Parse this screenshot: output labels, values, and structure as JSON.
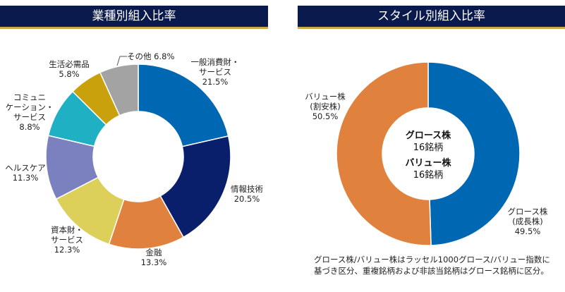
{
  "chart_data": [
    {
      "type": "pie",
      "title": "業種別組入比率",
      "donut": true,
      "slices": [
        {
          "label": "一般消費財・サービス",
          "label_lines": [
            "一般消費財・",
            "サービス"
          ],
          "value": 21.5,
          "value_text": "21.5%",
          "color": "#0068b3"
        },
        {
          "label": "情報技術",
          "label_lines": [
            "情報技術"
          ],
          "value": 20.5,
          "value_text": "20.5%",
          "color": "#0a1f6b"
        },
        {
          "label": "金融",
          "label_lines": [
            "金融"
          ],
          "value": 13.3,
          "value_text": "13.3%",
          "color": "#e0823d"
        },
        {
          "label": "資本財・サービス",
          "label_lines": [
            "資本財・",
            "サービス"
          ],
          "value": 12.3,
          "value_text": "12.3%",
          "color": "#dccf5a"
        },
        {
          "label": "ヘルスケア",
          "label_lines": [
            "ヘルスケア"
          ],
          "value": 11.3,
          "value_text": "11.3%",
          "color": "#7b80be"
        },
        {
          "label": "コミュニケーション・サービス",
          "label_lines": [
            "コミュニ",
            "ケーション・",
            "サービス"
          ],
          "value": 8.8,
          "value_text": "8.8%",
          "color": "#1fb0c4"
        },
        {
          "label": "生活必需品",
          "label_lines": [
            "生活必需品"
          ],
          "value": 5.8,
          "value_text": "5.8%",
          "color": "#c9a10c"
        },
        {
          "label": "その他",
          "label_lines": [],
          "value": 6.8,
          "value_text": "その他 6.8%",
          "color": "#a3a3a3"
        }
      ]
    },
    {
      "type": "pie",
      "title": "スタイル別組入比率",
      "donut": true,
      "slices": [
        {
          "label": "グロース株(成長株)",
          "label_lines": [
            "グロース株",
            "(成長株)"
          ],
          "value": 49.5,
          "value_text": "49.5%",
          "color": "#0068b3"
        },
        {
          "label": "バリュー株(割安株)",
          "label_lines": [
            "バリュー株",
            "(割安株)"
          ],
          "value": 50.5,
          "value_text": "50.5%",
          "color": "#e0823d"
        }
      ],
      "center_text": [
        {
          "text": "グロース株",
          "bold": true
        },
        {
          "text": "16銘柄",
          "bold": false
        },
        {
          "text": "バリュー株",
          "bold": true
        },
        {
          "text": "16銘柄",
          "bold": false
        }
      ]
    }
  ],
  "note": "グロース株/バリュー株はラッセル1000グロース/バリュー指数に基づき区分、重複銘柄および非該当銘柄はグロース銘柄に区分。"
}
